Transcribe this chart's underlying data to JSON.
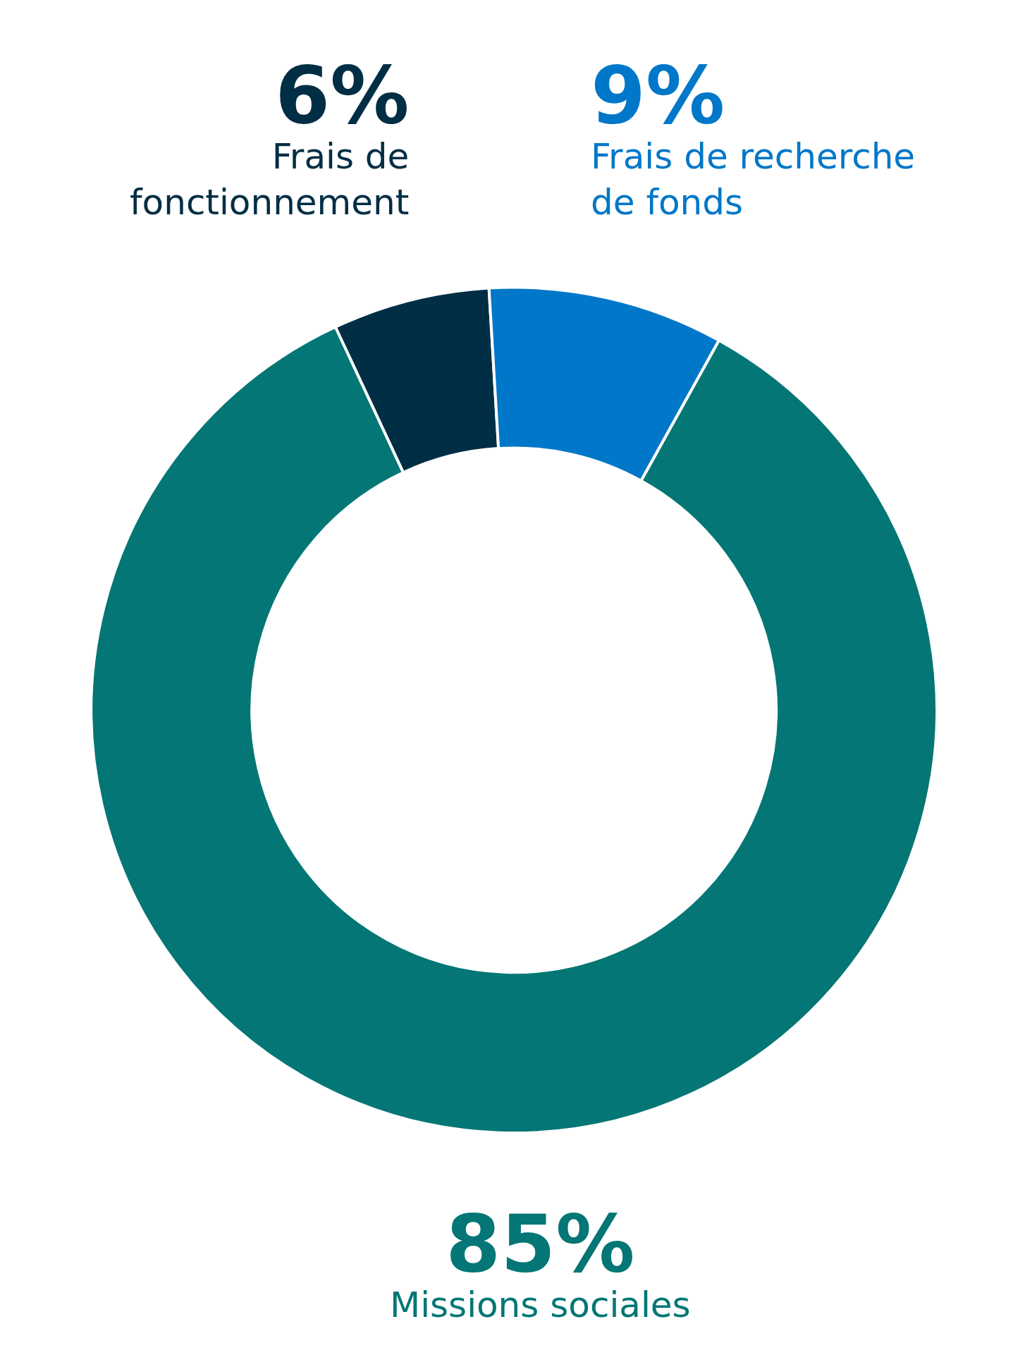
{
  "chart_data": {
    "type": "donut",
    "categories": [
      "Frais de fonctionnement",
      "Frais de recherche de fonds",
      "Missions sociales"
    ],
    "values": [
      6,
      9,
      85
    ],
    "value_labels": [
      "6%",
      "9%",
      "85%"
    ],
    "colors": [
      "#002e44",
      "#0077c8",
      "#037675"
    ],
    "legend": false
  }
}
